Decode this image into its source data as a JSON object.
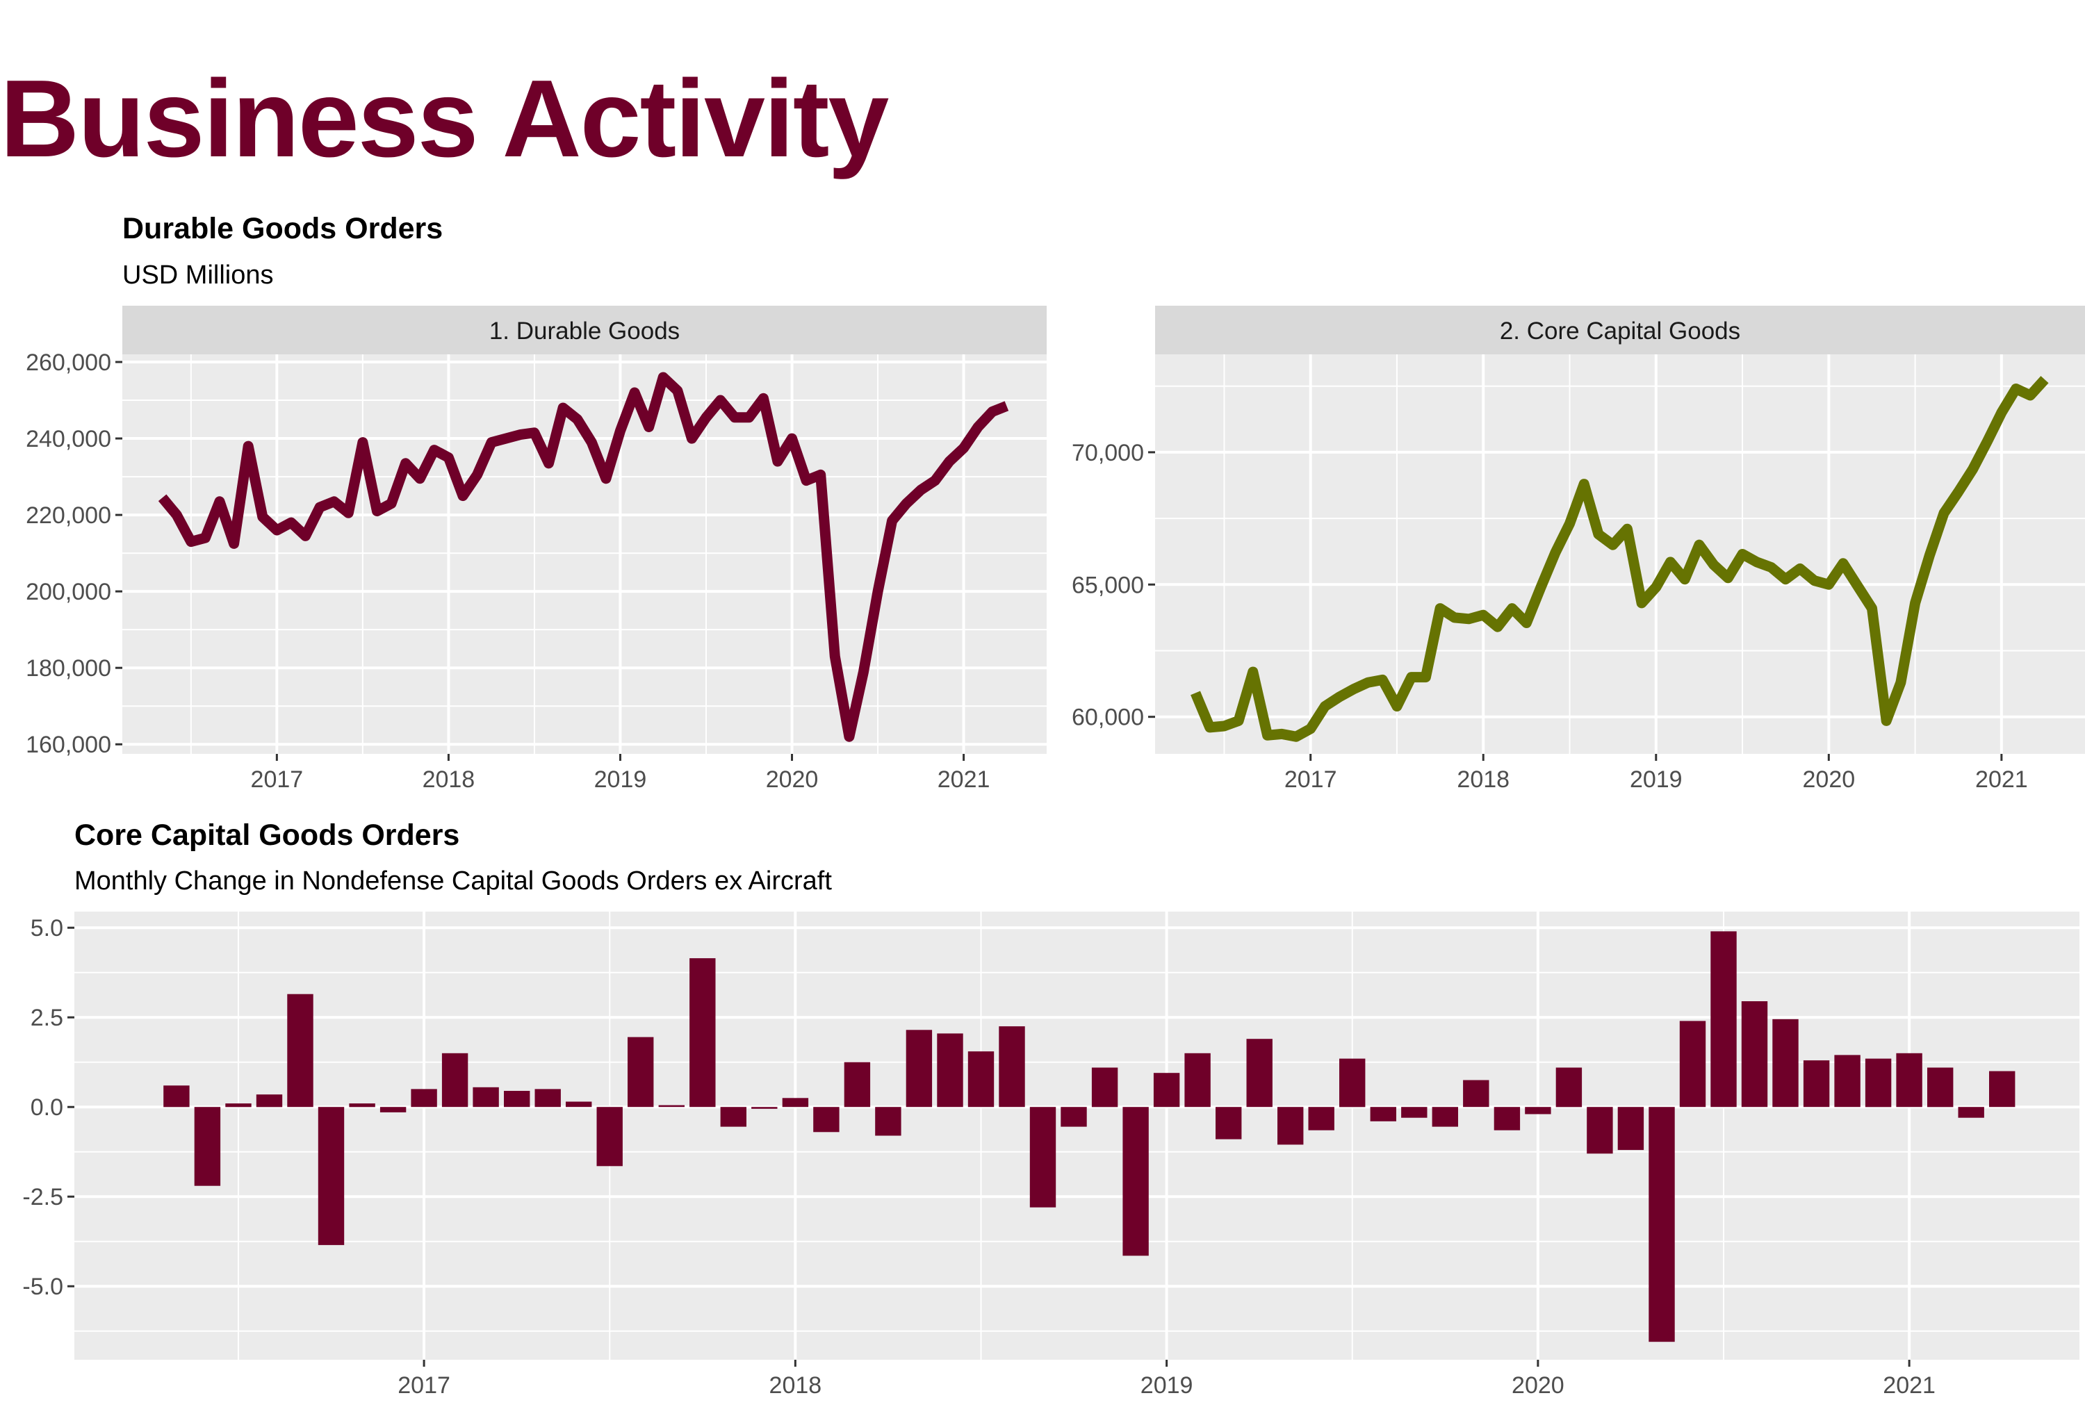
{
  "page": {
    "title": "Business Activity",
    "title_color": "#6F0029"
  },
  "chart_data": [
    {
      "type": "line",
      "panel_label": "1. Durable Goods",
      "title": "Durable Goods Orders",
      "subtitle": "USD Millions",
      "x_ticks": [
        "2017",
        "2018",
        "2019",
        "2020",
        "2021"
      ],
      "y_ticks": [
        "160,000",
        "180,000",
        "200,000",
        "220,000",
        "240,000",
        "260,000"
      ],
      "ylim": [
        157500,
        262000
      ],
      "series": [
        {
          "color": "#6F0029",
          "x": [
            "2016-05",
            "2016-06",
            "2016-07",
            "2016-08",
            "2016-09",
            "2016-10",
            "2016-11",
            "2016-12",
            "2017-01",
            "2017-02",
            "2017-03",
            "2017-04",
            "2017-05",
            "2017-06",
            "2017-07",
            "2017-08",
            "2017-09",
            "2017-10",
            "2017-11",
            "2017-12",
            "2018-01",
            "2018-02",
            "2018-03",
            "2018-04",
            "2018-05",
            "2018-06",
            "2018-07",
            "2018-08",
            "2018-09",
            "2018-10",
            "2018-11",
            "2018-12",
            "2019-01",
            "2019-02",
            "2019-03",
            "2019-04",
            "2019-05",
            "2019-06",
            "2019-07",
            "2019-08",
            "2019-09",
            "2019-10",
            "2019-11",
            "2019-12",
            "2020-01",
            "2020-02",
            "2020-03",
            "2020-04",
            "2020-05",
            "2020-06",
            "2020-07",
            "2020-08",
            "2020-09",
            "2020-10",
            "2020-11",
            "2020-12",
            "2021-01",
            "2021-02",
            "2021-03",
            "2021-04"
          ],
          "values": [
            224500,
            220000,
            213000,
            214000,
            223500,
            212500,
            238000,
            219500,
            216000,
            218000,
            214500,
            222000,
            223500,
            220500,
            239000,
            221000,
            223000,
            233500,
            229500,
            237000,
            235000,
            225000,
            230500,
            239000,
            240000,
            241000,
            241500,
            233500,
            248000,
            245000,
            239000,
            229500,
            242000,
            252000,
            243000,
            256000,
            252500,
            240000,
            245500,
            250000,
            245500,
            245500,
            250500,
            234000,
            240000,
            229000,
            230500,
            183000,
            162000,
            179000,
            200000,
            218500,
            223000,
            226500,
            229000,
            234000,
            237500,
            243000,
            247000,
            248500
          ]
        }
      ]
    },
    {
      "type": "line",
      "panel_label": "2. Core Capital Goods",
      "x_ticks": [
        "2017",
        "2018",
        "2019",
        "2020",
        "2021"
      ],
      "y_ticks": [
        "60,000",
        "65,000",
        "70,000"
      ],
      "ylim": [
        58600,
        73700
      ],
      "series": [
        {
          "color": "#667302",
          "x": [
            "2016-05",
            "2016-06",
            "2016-07",
            "2016-08",
            "2016-09",
            "2016-10",
            "2016-11",
            "2016-12",
            "2017-01",
            "2017-02",
            "2017-03",
            "2017-04",
            "2017-05",
            "2017-06",
            "2017-07",
            "2017-08",
            "2017-09",
            "2017-10",
            "2017-11",
            "2017-12",
            "2018-01",
            "2018-02",
            "2018-03",
            "2018-04",
            "2018-05",
            "2018-06",
            "2018-07",
            "2018-08",
            "2018-09",
            "2018-10",
            "2018-11",
            "2018-12",
            "2019-01",
            "2019-02",
            "2019-03",
            "2019-04",
            "2019-05",
            "2019-06",
            "2019-07",
            "2019-08",
            "2019-09",
            "2019-10",
            "2019-11",
            "2019-12",
            "2020-01",
            "2020-02",
            "2020-03",
            "2020-04",
            "2020-05",
            "2020-06",
            "2020-07",
            "2020-08",
            "2020-09",
            "2020-10",
            "2020-11",
            "2020-12",
            "2021-01",
            "2021-02",
            "2021-03",
            "2021-04"
          ],
          "values": [
            60900,
            59600,
            59650,
            59850,
            61700,
            59300,
            59350,
            59250,
            59550,
            60400,
            60750,
            61050,
            61300,
            61400,
            60400,
            61500,
            61500,
            64100,
            63750,
            63700,
            63850,
            63400,
            64100,
            63550,
            64900,
            66200,
            67300,
            68800,
            66900,
            66500,
            67100,
            64300,
            64900,
            65850,
            65200,
            66500,
            65750,
            65250,
            66150,
            65850,
            65650,
            65200,
            65600,
            65150,
            65000,
            65800,
            64950,
            64100,
            59850,
            61300,
            64300,
            66100,
            67700,
            68500,
            69350,
            70400,
            71500,
            72400,
            72150,
            72750
          ]
        }
      ]
    },
    {
      "type": "bar",
      "title": "Core Capital Goods Orders",
      "subtitle": "Monthly Change in Nondefense Capital Goods Orders ex Aircraft",
      "x_ticks": [
        "2017",
        "2018",
        "2019",
        "2020",
        "2021"
      ],
      "y_ticks": [
        "-5.0",
        "-2.5",
        "0.0",
        "2.5",
        "5.0"
      ],
      "ylim": [
        -7.05,
        5.45
      ],
      "color": "#6F0029",
      "x": [
        "2016-05",
        "2016-06",
        "2016-07",
        "2016-08",
        "2016-09",
        "2016-10",
        "2016-11",
        "2016-12",
        "2017-01",
        "2017-02",
        "2017-03",
        "2017-04",
        "2017-05",
        "2017-06",
        "2017-07",
        "2017-08",
        "2017-09",
        "2017-10",
        "2017-11",
        "2017-12",
        "2018-01",
        "2018-02",
        "2018-03",
        "2018-04",
        "2018-05",
        "2018-06",
        "2018-07",
        "2018-08",
        "2018-09",
        "2018-10",
        "2018-11",
        "2018-12",
        "2019-01",
        "2019-02",
        "2019-03",
        "2019-04",
        "2019-05",
        "2019-06",
        "2019-07",
        "2019-08",
        "2019-09",
        "2019-10",
        "2019-11",
        "2019-12",
        "2020-01",
        "2020-02",
        "2020-03",
        "2020-04",
        "2020-05",
        "2020-06",
        "2020-07",
        "2020-08",
        "2020-09",
        "2020-10",
        "2020-11",
        "2020-12",
        "2021-01",
        "2021-02",
        "2021-03",
        "2021-04"
      ],
      "values": [
        0.6,
        -2.2,
        0.1,
        0.35,
        3.15,
        -3.85,
        0.1,
        -0.15,
        0.5,
        1.5,
        0.55,
        0.45,
        0.5,
        0.15,
        -1.65,
        1.95,
        0.05,
        4.15,
        -0.55,
        -0.05,
        0.25,
        -0.7,
        1.25,
        -0.8,
        2.15,
        2.05,
        1.55,
        2.25,
        -2.8,
        -0.55,
        1.1,
        -4.15,
        0.95,
        1.5,
        -0.9,
        1.9,
        -1.05,
        -0.65,
        1.35,
        -0.4,
        -0.3,
        -0.55,
        0.75,
        -0.65,
        -0.2,
        1.1,
        -1.3,
        -1.2,
        -6.55,
        2.4,
        4.9,
        2.95,
        2.45,
        1.3,
        1.45,
        1.35,
        1.5,
        1.1,
        -0.3,
        1.0
      ]
    }
  ]
}
